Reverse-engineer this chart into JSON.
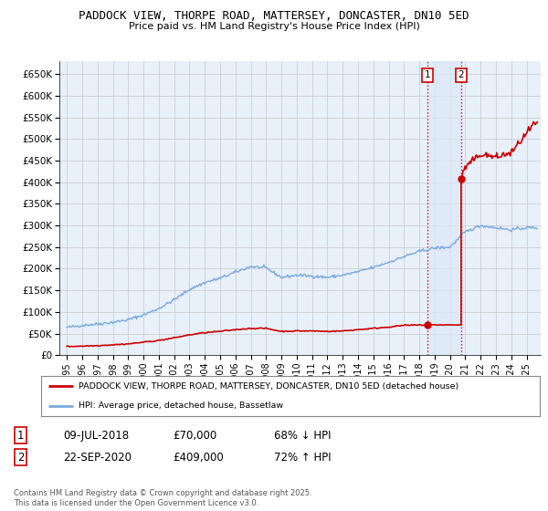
{
  "title1": "PADDOCK VIEW, THORPE ROAD, MATTERSEY, DONCASTER, DN10 5ED",
  "title2": "Price paid vs. HM Land Registry's House Price Index (HPI)",
  "background_color": "#ffffff",
  "plot_bg_color": "#e8f0fa",
  "grid_color": "#c8c8c8",
  "hpi_color": "#7aaadd",
  "sale_color": "#cc0000",
  "annotation_line_color": "#cc0000",
  "annotation_fill_color": "#dce8f8",
  "legend_label_sale": "PADDOCK VIEW, THORPE ROAD, MATTERSEY, DONCASTER, DN10 5ED (detached house)",
  "legend_label_hpi": "HPI: Average price, detached house, Bassetlaw",
  "sale1_date": 2018.52,
  "sale1_price": 70000,
  "sale1_label": "1",
  "sale2_date": 2020.73,
  "sale2_price": 409000,
  "sale2_label": "2",
  "table_row1": [
    "1",
    "09-JUL-2018",
    "£70,000",
    "68% ↓ HPI"
  ],
  "table_row2": [
    "2",
    "22-SEP-2020",
    "£409,000",
    "72% ↑ HPI"
  ],
  "footnote": "Contains HM Land Registry data © Crown copyright and database right 2025.\nThis data is licensed under the Open Government Licence v3.0.",
  "ylim": [
    0,
    680000
  ],
  "xlim_start": 1994.5,
  "xlim_end": 2025.9,
  "yticks": [
    0,
    50000,
    100000,
    150000,
    200000,
    250000,
    300000,
    350000,
    400000,
    450000,
    500000,
    550000,
    600000,
    650000
  ],
  "ytick_labels": [
    "£0",
    "£50K",
    "£100K",
    "£150K",
    "£200K",
    "£250K",
    "£300K",
    "£350K",
    "£400K",
    "£450K",
    "£500K",
    "£550K",
    "£600K",
    "£650K"
  ],
  "xticks": [
    1995,
    1996,
    1997,
    1998,
    1999,
    2000,
    2001,
    2002,
    2003,
    2004,
    2005,
    2006,
    2007,
    2008,
    2009,
    2010,
    2011,
    2012,
    2013,
    2014,
    2015,
    2016,
    2017,
    2018,
    2019,
    2020,
    2021,
    2022,
    2023,
    2024,
    2025
  ],
  "hpi_base_years": [
    1995,
    1996,
    1997,
    1998,
    1999,
    2000,
    2001,
    2002,
    2003,
    2004,
    2005,
    2006,
    2007,
    2008,
    2009,
    2010,
    2011,
    2012,
    2013,
    2014,
    2015,
    2016,
    2017,
    2018,
    2019,
    2020,
    2021,
    2022,
    2023,
    2024,
    2025
  ],
  "hpi_base_values": [
    64000,
    69000,
    72000,
    76000,
    82000,
    93000,
    108000,
    128000,
    152000,
    168000,
    178000,
    192000,
    205000,
    202000,
    180000,
    185000,
    183000,
    180000,
    185000,
    193000,
    203000,
    215000,
    228000,
    240000,
    248000,
    250000,
    285000,
    300000,
    295000,
    290000,
    295000
  ],
  "sale_base_years": [
    1995,
    1996,
    1997,
    1998,
    1999,
    2000,
    2001,
    2002,
    2003,
    2004,
    2005,
    2006,
    2007,
    2008,
    2009,
    2010,
    2011,
    2012,
    2013,
    2014,
    2015,
    2016,
    2017,
    2018,
    2020.73,
    2021,
    2022,
    2023,
    2024,
    2025.5
  ],
  "sale_base_values": [
    20000,
    21000,
    22000,
    24000,
    26000,
    30000,
    34000,
    40000,
    47000,
    52000,
    55000,
    59000,
    62000,
    62000,
    55000,
    56000,
    56000,
    55000,
    56000,
    59000,
    62000,
    65000,
    69000,
    70000,
    409000,
    430000,
    460000,
    455000,
    465000,
    535000
  ]
}
